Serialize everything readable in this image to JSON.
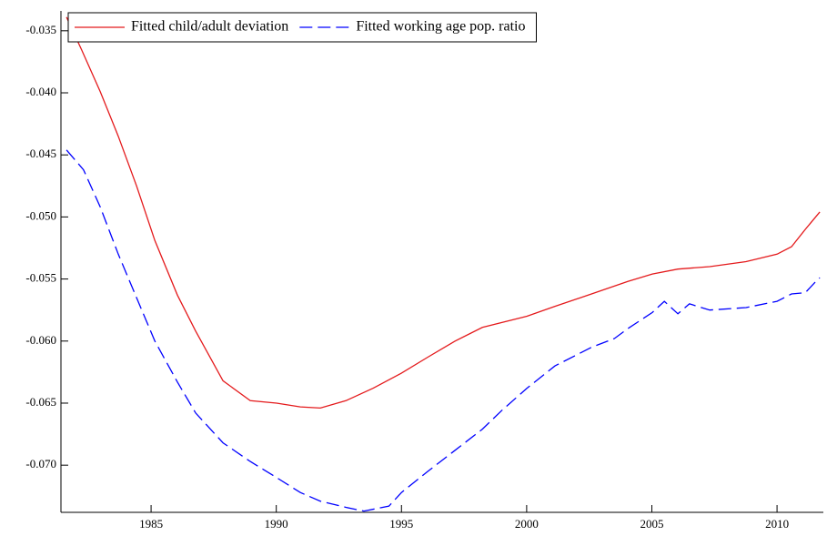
{
  "chart_data": {
    "type": "line",
    "series": [
      {
        "name": "Fitted child/adult deviation",
        "color": "#e41a1c",
        "style": "solid",
        "x": [
          1981.62,
          1982.24,
          1982.97,
          1983.69,
          1984.42,
          1985.15,
          1986.05,
          1986.78,
          1987.87,
          1988.96,
          1990.01,
          1990.96,
          1991.76,
          1992.78,
          1993.87,
          1994.99,
          1996.05,
          1997.14,
          1998.23,
          2000.01,
          2001.13,
          2002.59,
          2004.04,
          2005.02,
          2006.04,
          2007.31,
          2008.76,
          2010.0,
          2010.58,
          2011.13,
          2011.71
        ],
        "values": [
          -0.0339,
          -0.0366,
          -0.0399,
          -0.0435,
          -0.0475,
          -0.0519,
          -0.0563,
          -0.0592,
          -0.0632,
          -0.0648,
          -0.065,
          -0.0653,
          -0.0654,
          -0.0648,
          -0.0638,
          -0.0626,
          -0.0613,
          -0.06,
          -0.0589,
          -0.058,
          -0.0572,
          -0.0562,
          -0.0552,
          -0.0546,
          -0.0542,
          -0.054,
          -0.0536,
          -0.053,
          -0.0524,
          -0.051,
          -0.0496
        ]
      },
      {
        "name": "Fitted working age pop. ratio",
        "color": "#0000ff",
        "style": "dashed",
        "x": [
          1981.62,
          1982.3,
          1982.97,
          1983.69,
          1984.42,
          1985.15,
          1986.05,
          1986.78,
          1987.87,
          1988.96,
          1990.01,
          1990.96,
          1991.76,
          1992.78,
          1993.5,
          1994.5,
          1995.0,
          1996.05,
          1997.14,
          1998.23,
          1999.0,
          2000.01,
          2001.13,
          2002.59,
          2003.5,
          2004.04,
          2005.02,
          2005.5,
          2006.04,
          2006.5,
          2007.31,
          2008.76,
          2010.0,
          2010.58,
          2011.13,
          2011.5,
          2011.71
        ],
        "values": [
          -0.0446,
          -0.0462,
          -0.0492,
          -0.053,
          -0.0565,
          -0.06,
          -0.0633,
          -0.0658,
          -0.0682,
          -0.0697,
          -0.071,
          -0.0722,
          -0.0729,
          -0.0734,
          -0.0737,
          -0.0733,
          -0.0722,
          -0.0705,
          -0.0688,
          -0.0671,
          -0.0656,
          -0.0638,
          -0.062,
          -0.0605,
          -0.0598,
          -0.059,
          -0.0577,
          -0.0568,
          -0.0578,
          -0.057,
          -0.0575,
          -0.0573,
          -0.0568,
          -0.0562,
          -0.0561,
          -0.0553,
          -0.0549
        ]
      }
    ],
    "xlim": [
      1981.4,
      2011.85
    ],
    "xticks": [
      1985,
      1990,
      1995,
      2000,
      2005,
      2010
    ],
    "ylim": [
      -0.0738,
      -0.0334
    ],
    "yticks": [
      -0.035,
      {
        "value": -0.04,
        "label": "-0.040"
      },
      -0.045,
      {
        "value": -0.05,
        "label": "-0.050"
      },
      -0.055,
      {
        "value": -0.06,
        "label": "-0.060"
      },
      -0.065,
      {
        "value": -0.07,
        "label": "-0.070"
      }
    ],
    "legend": "upper left"
  }
}
